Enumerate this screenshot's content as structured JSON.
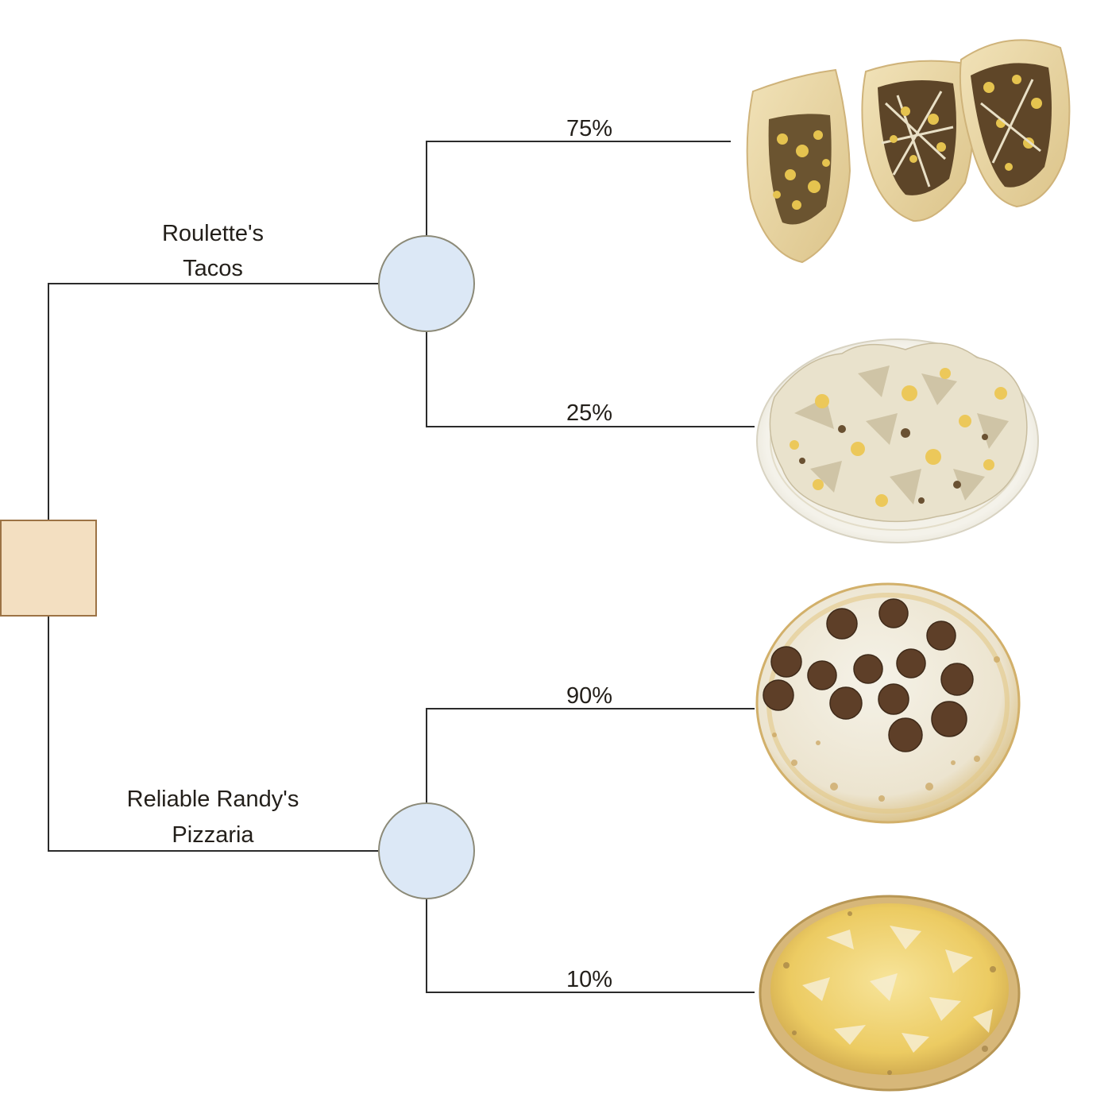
{
  "diagram": {
    "colors": {
      "line": "#2b2b2b",
      "decision_fill": "#f3dfc1",
      "decision_stroke": "#9c7345",
      "chance_fill": "#dce8f6",
      "chance_stroke": "#8c8a78",
      "food_crust": "#e8cf8a",
      "food_cheese": "#f2d874",
      "food_meat": "#5b4022",
      "food_pepperoni": "#5e3f28",
      "food_lettuce": "#e9e2cc",
      "plate": "#f7f6f1"
    },
    "branches": [
      {
        "label_line1": "Roulette's",
        "label_line2": "Tacos",
        "outcomes": [
          {
            "probability": "75%",
            "image": "tacos-image"
          },
          {
            "probability": "25%",
            "image": "taco-salad-plate-image"
          }
        ]
      },
      {
        "label_line1": "Reliable Randy's",
        "label_line2": "Pizzaria",
        "outcomes": [
          {
            "probability": "90%",
            "image": "pepperoni-pizza-image"
          },
          {
            "probability": "10%",
            "image": "cheese-pizza-image"
          }
        ]
      }
    ]
  }
}
